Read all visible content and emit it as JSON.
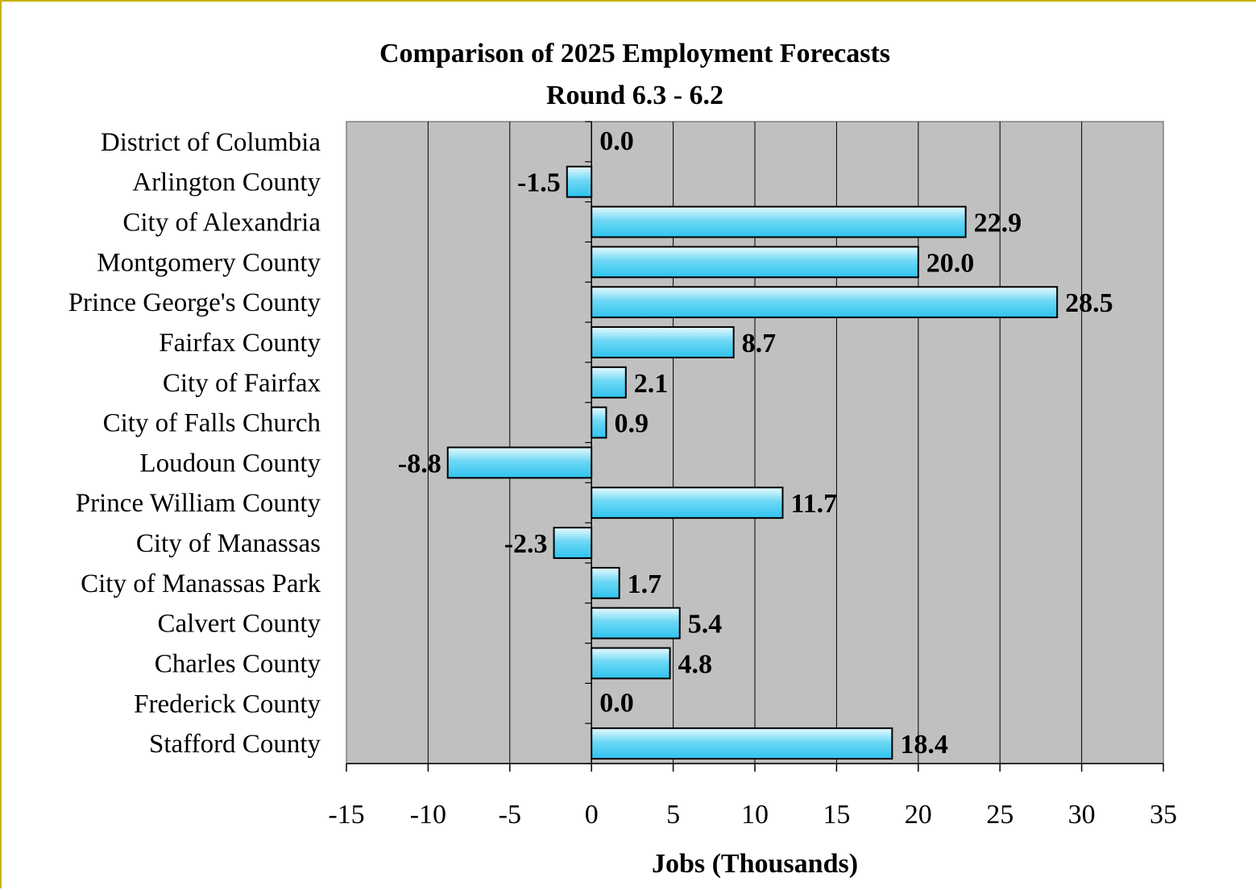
{
  "chart_data": {
    "type": "bar",
    "orientation": "horizontal",
    "title": "Comparison of 2025 Employment Forecasts",
    "subtitle": "Round 6.3 - 6.2",
    "xlabel": "Jobs (Thousands)",
    "ylabel": "",
    "xlim": [
      -15,
      35
    ],
    "x_ticks": [
      -15,
      -10,
      -5,
      0,
      5,
      10,
      15,
      20,
      25,
      30,
      35
    ],
    "grid": "vertical",
    "legend": "none",
    "categories": [
      "District of Columbia",
      "Arlington County",
      "City of Alexandria",
      "Montgomery County",
      "Prince George's County",
      "Fairfax County",
      "City of Fairfax",
      "City of Falls Church",
      "Loudoun County",
      "Prince William County",
      "City of Manassas",
      "City of Manassas Park",
      "Calvert County",
      "Charles County",
      "Frederick County",
      "Stafford County"
    ],
    "values": [
      0.0,
      -1.5,
      22.9,
      20.0,
      28.5,
      8.7,
      2.1,
      0.9,
      -8.8,
      11.7,
      -2.3,
      1.7,
      5.4,
      4.8,
      0.0,
      18.4
    ],
    "data_labels": [
      "0.0",
      "-1.5",
      "22.9",
      "20.0",
      "28.5",
      "8.7",
      "2.1",
      "0.9",
      "-8.8",
      "11.7",
      "-2.3",
      "1.7",
      "5.4",
      "4.8",
      "0.0",
      "18.4"
    ],
    "colors": {
      "plot_background": "#c0c0c0",
      "bar_fill_light": "#e8faff",
      "bar_fill_mid": "#6fd8f5",
      "bar_fill_dark": "#2ec3ee",
      "bar_stroke": "#000000",
      "gridline": "#000000",
      "frame_border": "#c8b400"
    }
  }
}
